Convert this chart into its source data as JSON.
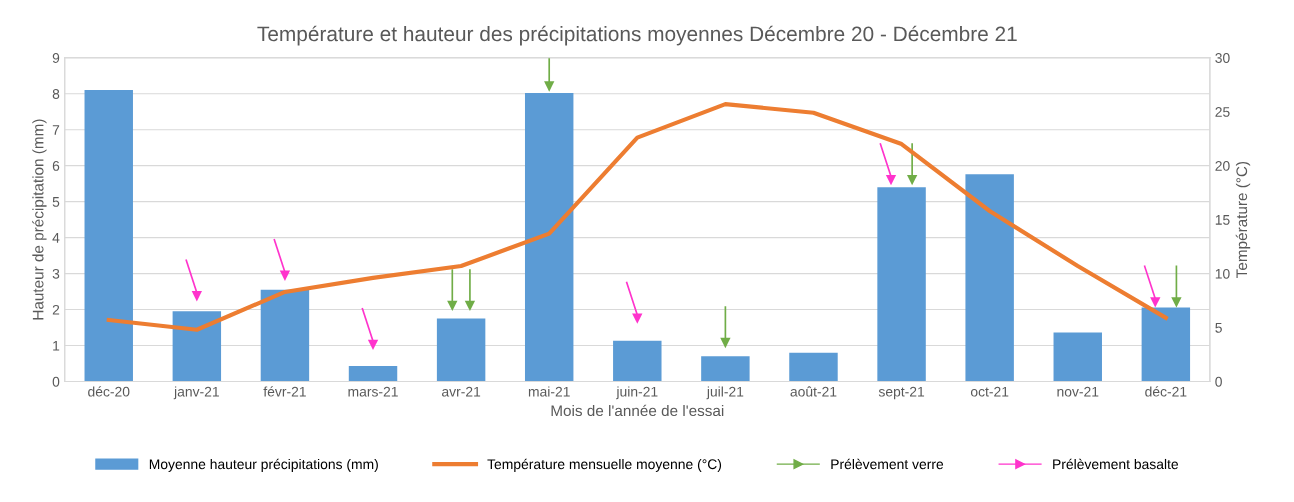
{
  "chart_data": {
    "type": "bar",
    "title": "Température et hauteur des précipitations moyennes Décembre 20 - Décembre 21",
    "categories": [
      "déc-20",
      "janv-21",
      "févr-21",
      "mars-21",
      "avr-21",
      "mai-21",
      "juin-21",
      "juil-21",
      "août-21",
      "sept-21",
      "oct-21",
      "nov-21",
      "déc-21"
    ],
    "xlabel": "Mois de l'année de l'essai",
    "ylabel": "Hauteur de précipitation (mm)",
    "y2label": "Température (°C)",
    "series": [
      {
        "name": "Moyenne hauteur précipitations (mm)",
        "color": "#5b9bd5",
        "values": [
          8.1,
          1.95,
          2.55,
          0.43,
          1.75,
          8.02,
          1.13,
          0.7,
          0.8,
          5.4,
          5.76,
          1.36,
          2.06
        ]
      },
      {
        "name": "Température mensuelle moyenne (°C)",
        "type": "line",
        "axis": "y2",
        "color": "#ed7d31",
        "values": [
          5.7,
          4.8,
          8.3,
          9.6,
          10.7,
          13.7,
          22.6,
          25.7,
          24.9,
          22.0,
          15.8,
          10.7,
          5.9
        ]
      },
      {
        "name": "Prélèvement verre",
        "type": "scatter",
        "marker": "triangle",
        "color": "#70ad47",
        "x": [
          "avr-21",
          "avr-21",
          "mai-21",
          "juil-21",
          "sept-21",
          "déc-21"
        ],
        "values": [
          2.1,
          2.1,
          8.2,
          1.07,
          5.6,
          2.2
        ]
      },
      {
        "name": "Prélèvement basalte",
        "type": "scatter",
        "marker": "triangle",
        "color": "#ff33cc",
        "x": [
          "janv-21",
          "févr-21",
          "mars-21",
          "juin-21",
          "sept-21",
          "déc-21"
        ],
        "values": [
          2.37,
          2.94,
          1.02,
          1.75,
          5.6,
          2.2
        ]
      }
    ],
    "ylim": [
      0,
      9
    ],
    "yticks": [
      0,
      1,
      2,
      3,
      4,
      5,
      6,
      7,
      8,
      9
    ],
    "y2lim": [
      0,
      30
    ],
    "y2ticks": [
      0,
      5,
      10,
      15,
      20,
      25,
      30
    ],
    "grid": "y",
    "legend": "bottom"
  }
}
